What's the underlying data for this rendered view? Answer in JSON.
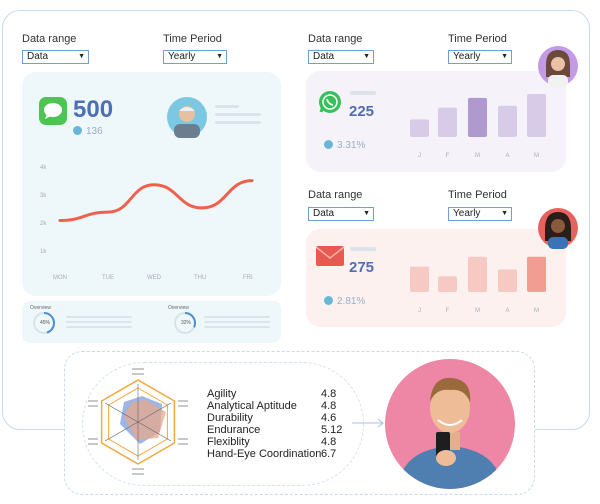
{
  "filters": {
    "data_range_label": "Data range",
    "data_range_value": "Data",
    "time_period_label": "Time Period",
    "time_period_value": "Yearly"
  },
  "messages_card": {
    "main_value": "500",
    "sub_value": "136",
    "icon": "message-bubble-icon",
    "accent": "#4ec455"
  },
  "line_chart": {
    "chart_data": {
      "type": "line",
      "categories": [
        "MON",
        "TUE",
        "WED",
        "THU",
        "FRI"
      ],
      "y_ticks": [
        "4k",
        "3k",
        "2k",
        "1k"
      ],
      "ylim": [
        0.5,
        4.5
      ],
      "values": [
        2.0,
        2.4,
        3.7,
        2.6,
        3.9
      ],
      "color": "#f0604c"
    }
  },
  "overview": [
    {
      "label": "Overview",
      "percent_text": "45%",
      "percent": 45
    },
    {
      "label": "Overview",
      "percent_text": "32%",
      "percent": 32
    }
  ],
  "whatsapp_card": {
    "main_value": "225",
    "sub_value": "3.31%",
    "icon": "whatsapp-icon",
    "chart_data": {
      "type": "bar",
      "categories": [
        "J",
        "F",
        "M",
        "A",
        "M"
      ],
      "values": [
        1.8,
        3.0,
        4.0,
        3.2,
        4.4
      ],
      "highlight_index": 2,
      "color": "#d8cbe8",
      "highlight_color": "#b099cf"
    }
  },
  "email_card": {
    "main_value": "275",
    "sub_value": "2.81%",
    "icon": "envelope-icon",
    "chart_data": {
      "type": "bar",
      "categories": [
        "J",
        "F",
        "M",
        "A",
        "M"
      ],
      "values": [
        2.6,
        1.6,
        3.6,
        2.3,
        3.6
      ],
      "highlight_index": 4,
      "color": "#f6c9c3",
      "highlight_color": "#f19d91"
    }
  },
  "attributes": {
    "items": [
      {
        "name": "Agility",
        "value": "4.8"
      },
      {
        "name": "Analytical Aptitude",
        "value": "4.8"
      },
      {
        "name": "Durability",
        "value": "4.6"
      },
      {
        "name": "Endurance",
        "value": "5.12"
      },
      {
        "name": "Flexiblity",
        "value": "4.8"
      },
      {
        "name": "Hand-Eye Coordination",
        "value": "6.7"
      }
    ],
    "hex_color": "#f3a73c"
  }
}
